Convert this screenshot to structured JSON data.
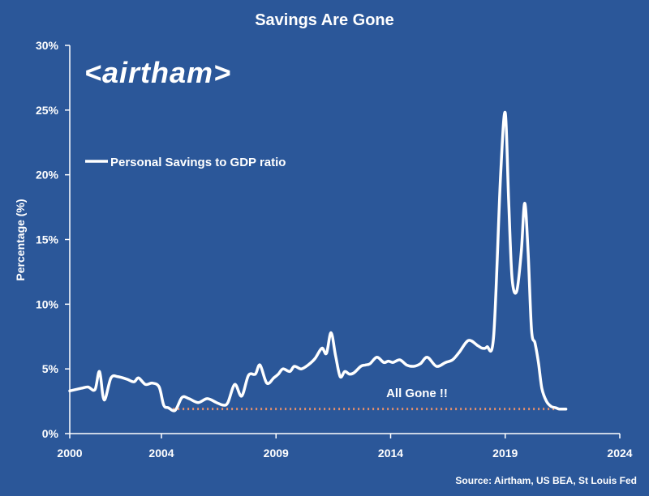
{
  "chart_data": {
    "type": "line",
    "title": "Savings Are Gone",
    "ylabel": "Percentage (%)",
    "xlabel": "",
    "xlim": [
      2000,
      2024
    ],
    "ylim": [
      0,
      30
    ],
    "xticks": [
      2000,
      2004,
      2009,
      2014,
      2019,
      2024
    ],
    "xtick_labels": [
      "2000",
      "2004",
      "2009",
      "2014",
      "2019",
      "2024"
    ],
    "yticks": [
      0,
      5,
      10,
      15,
      20,
      25,
      30
    ],
    "ytick_labels": [
      "0%",
      "5%",
      "10%",
      "15%",
      "20%",
      "25%",
      "30%"
    ],
    "grid": false,
    "legend": "upper-left",
    "series": [
      {
        "name": "Personal Savings to GDP ratio",
        "color": "#ffffff",
        "x": [
          2000.0,
          2000.5,
          2000.8,
          2001.1,
          2001.3,
          2001.5,
          2001.8,
          2002.1,
          2002.5,
          2002.8,
          2003.0,
          2003.3,
          2003.6,
          2003.9,
          2004.1,
          2004.3,
          2004.6,
          2004.9,
          2005.2,
          2005.6,
          2006.0,
          2006.4,
          2006.7,
          2006.9,
          2007.2,
          2007.5,
          2007.8,
          2008.1,
          2008.3,
          2008.6,
          2008.9,
          2009.1,
          2009.3,
          2009.6,
          2009.8,
          2010.1,
          2010.4,
          2010.7,
          2011.0,
          2011.2,
          2011.4,
          2011.6,
          2011.8,
          2012.0,
          2012.2,
          2012.4,
          2012.7,
          2012.9,
          2013.1,
          2013.4,
          2013.7,
          2013.9,
          2014.1,
          2014.4,
          2014.7,
          2015.0,
          2015.3,
          2015.6,
          2016.0,
          2016.4,
          2016.7,
          2017.0,
          2017.4,
          2017.8,
          2018.0,
          2018.2,
          2018.5,
          2018.8,
          2019.0,
          2019.15,
          2019.3,
          2019.5,
          2019.7,
          2019.85,
          2020.0,
          2020.15,
          2020.3,
          2020.45,
          2020.6,
          2020.8,
          2021.0,
          2021.2,
          2021.35,
          2021.5,
          2021.65
        ],
        "values": [
          3.3,
          3.5,
          3.6,
          3.4,
          4.8,
          2.6,
          4.3,
          4.4,
          4.2,
          4.0,
          4.3,
          3.8,
          3.9,
          3.6,
          2.2,
          2.0,
          1.8,
          2.8,
          2.7,
          2.4,
          2.7,
          2.4,
          2.2,
          2.4,
          3.8,
          2.9,
          4.5,
          4.6,
          5.3,
          3.9,
          4.3,
          4.6,
          5.0,
          4.8,
          5.2,
          5.0,
          5.3,
          5.8,
          6.6,
          6.2,
          7.8,
          6.0,
          4.4,
          4.8,
          4.6,
          4.7,
          5.2,
          5.3,
          5.4,
          5.9,
          5.5,
          5.6,
          5.5,
          5.7,
          5.3,
          5.2,
          5.4,
          5.9,
          5.2,
          5.5,
          5.7,
          6.3,
          7.2,
          6.8,
          6.6,
          6.7,
          7.6,
          20.0,
          24.8,
          18.0,
          12.0,
          11.0,
          14.0,
          17.8,
          14.0,
          8.0,
          7.0,
          5.5,
          3.5,
          2.5,
          2.1,
          2.0,
          1.9,
          1.9,
          1.9
        ],
        "annotation": "All Gone !!"
      }
    ],
    "reference_line": {
      "y": 1.9,
      "x_from": 2004.5,
      "x_to": 2021.65,
      "style": "dotted",
      "color": "#e8906a"
    },
    "source": "Source: Airtham, US BEA, St Louis Fed",
    "logo_text": "<airtham>"
  }
}
